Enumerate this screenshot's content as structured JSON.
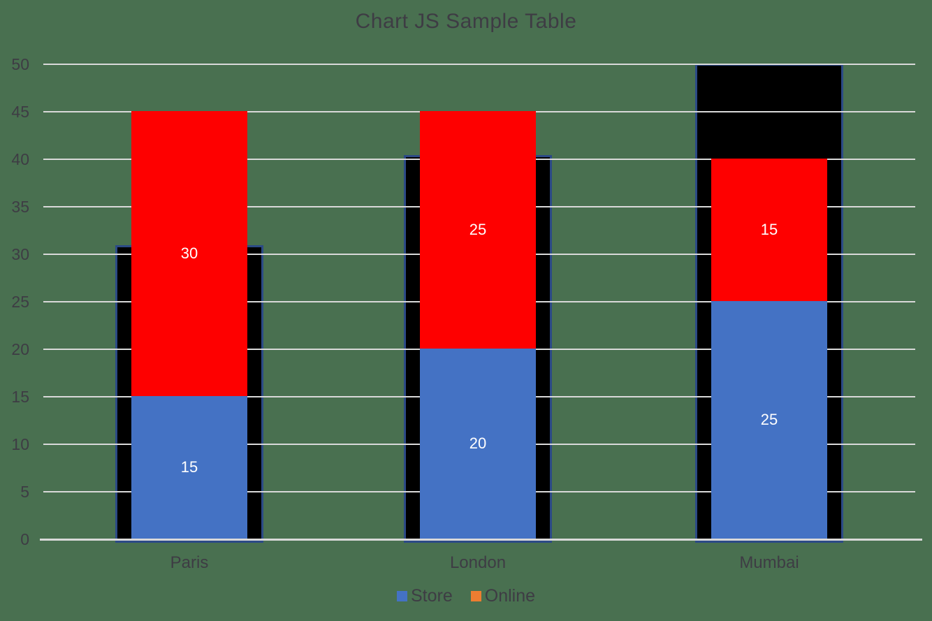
{
  "title": "Chart JS Sample Table",
  "chart_data": {
    "type": "bar",
    "stacked": true,
    "title": "Chart JS Sample Table",
    "categories": [
      "Paris",
      "London",
      "Mumbai"
    ],
    "series": [
      {
        "name": "Store",
        "color": "#4472c4",
        "values": [
          15,
          20,
          25
        ],
        "labels": [
          "15",
          "20",
          "25"
        ]
      },
      {
        "name": "Online",
        "color": "#fe0000",
        "values": [
          30,
          25,
          15
        ],
        "labels": [
          "30",
          "25",
          "15"
        ]
      }
    ],
    "background_bars": {
      "name": "black-backdrop-bars",
      "color": "#000000",
      "border_color": "#2c4a86",
      "values": [
        30.9,
        40.4,
        50
      ]
    },
    "ylim": [
      0,
      50
    ],
    "yticks": [
      "0",
      "5",
      "10",
      "15",
      "20",
      "25",
      "30",
      "35",
      "40",
      "45",
      "50"
    ],
    "ytick_step": 5,
    "grid": true,
    "gridline_color": "#d9d9d9",
    "axis_line_color": "#d9d9d9",
    "value_label_color": "#ffffff",
    "text_color": "#3e3c44",
    "background_color": "#497050",
    "legend_position": "bottom",
    "legend": [
      {
        "label": "Store",
        "color": "#4472c4"
      },
      {
        "label": "Online",
        "color": "#ed7d31"
      }
    ]
  }
}
